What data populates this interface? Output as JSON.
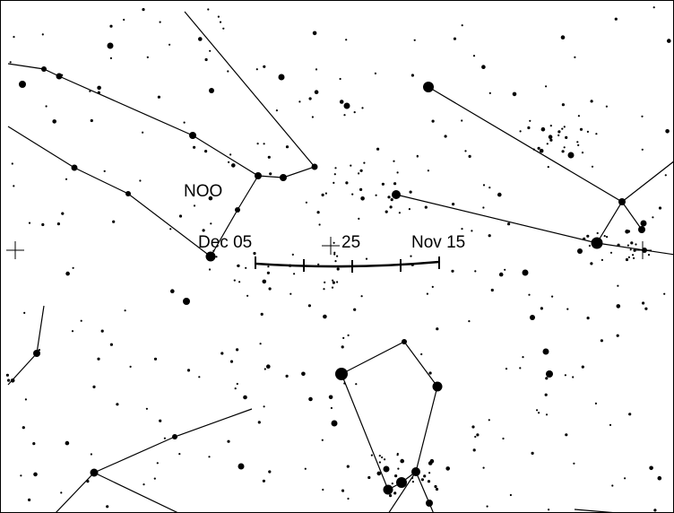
{
  "chart": {
    "constellation_label": "NOO",
    "path_labels": {
      "start": "Dec 05",
      "middle": "25",
      "end": "Nov 15"
    },
    "colors": {
      "background": "#ffffff",
      "stars": "#000000",
      "lines": "#000000"
    }
  }
}
